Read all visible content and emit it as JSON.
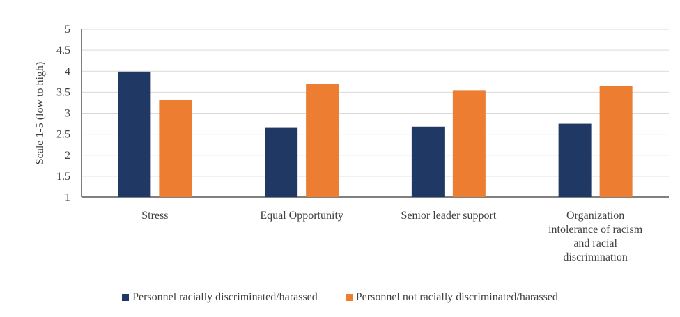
{
  "chart_data": {
    "type": "bar",
    "ylabel": "Scale 1-5 (low to high)",
    "ylim": [
      1,
      5
    ],
    "yticks": [
      "1",
      "1.5",
      "2",
      "2.5",
      "3",
      "3.5",
      "4",
      "4.5",
      "5"
    ],
    "categories": [
      [
        "Stress"
      ],
      [
        "Equal Opportunity"
      ],
      [
        "Senior leader support"
      ],
      [
        "Organization",
        "intolerance of racism",
        "and racial",
        "discrimination"
      ]
    ],
    "series": [
      {
        "name": "Personnel racially discriminated/harassed",
        "color": "#1f3864",
        "values": [
          3.99,
          2.65,
          2.68,
          2.75
        ]
      },
      {
        "name": "Personnel not racially discriminated/harassed",
        "color": "#ed7d31",
        "values": [
          3.32,
          3.69,
          3.55,
          3.64
        ]
      }
    ],
    "grid": true,
    "legend_position": "bottom"
  }
}
